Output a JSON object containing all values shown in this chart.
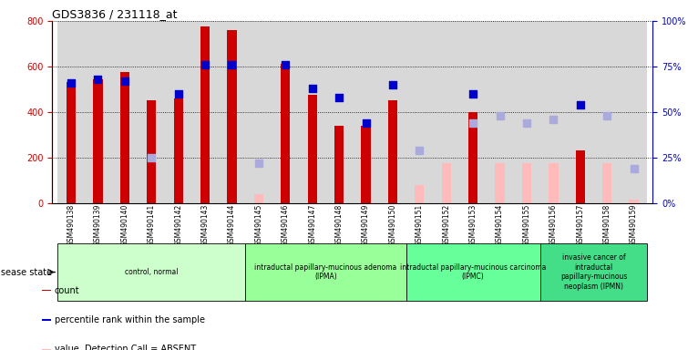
{
  "title": "GDS3836 / 231118_at",
  "samples": [
    "GSM490138",
    "GSM490139",
    "GSM490140",
    "GSM490141",
    "GSM490142",
    "GSM490143",
    "GSM490144",
    "GSM490145",
    "GSM490146",
    "GSM490147",
    "GSM490148",
    "GSM490149",
    "GSM490150",
    "GSM490151",
    "GSM490152",
    "GSM490153",
    "GSM490154",
    "GSM490155",
    "GSM490156",
    "GSM490157",
    "GSM490158",
    "GSM490159"
  ],
  "count_values": [
    530,
    545,
    575,
    450,
    460,
    775,
    760,
    null,
    610,
    475,
    340,
    340,
    450,
    null,
    null,
    400,
    null,
    null,
    null,
    230,
    null,
    null
  ],
  "count_absent": [
    null,
    null,
    null,
    null,
    null,
    null,
    null,
    40,
    null,
    null,
    null,
    null,
    null,
    80,
    175,
    null,
    175,
    175,
    175,
    null,
    175,
    15
  ],
  "rank_present": [
    66,
    68,
    67,
    null,
    60,
    76,
    76,
    null,
    76,
    63,
    58,
    44,
    65,
    null,
    null,
    60,
    null,
    null,
    null,
    54,
    null,
    null
  ],
  "rank_absent": [
    null,
    null,
    null,
    25,
    null,
    null,
    null,
    22,
    null,
    null,
    null,
    null,
    null,
    29,
    null,
    44,
    48,
    44,
    46,
    null,
    48,
    19
  ],
  "ylim_left": [
    0,
    800
  ],
  "ylim_right": [
    0,
    100
  ],
  "yticks_left": [
    0,
    200,
    400,
    600,
    800
  ],
  "yticks_right": [
    0,
    25,
    50,
    75,
    100
  ],
  "groups": [
    {
      "label": "control, normal",
      "start": 0,
      "end": 7
    },
    {
      "label": "intraductal papillary-mucinous adenoma\n(IPMA)",
      "start": 7,
      "end": 13
    },
    {
      "label": "intraductal papillary-mucinous carcinoma\n(IPMC)",
      "start": 13,
      "end": 18
    },
    {
      "label": "invasive cancer of\nintraductal\npapillary-mucinous\nneoplasm (IPMN)",
      "start": 18,
      "end": 22
    }
  ],
  "group_colors": [
    "#ccffcc",
    "#99ff99",
    "#66ff99",
    "#44dd88"
  ],
  "bar_color_present": "#cc0000",
  "bar_color_absent": "#ffbbbb",
  "dot_color_present": "#0000cc",
  "dot_color_absent": "#aaaadd",
  "bar_width": 0.35,
  "dot_size": 40,
  "ylabel_left_color": "#cc0000",
  "ylabel_right_color": "#0000cc"
}
